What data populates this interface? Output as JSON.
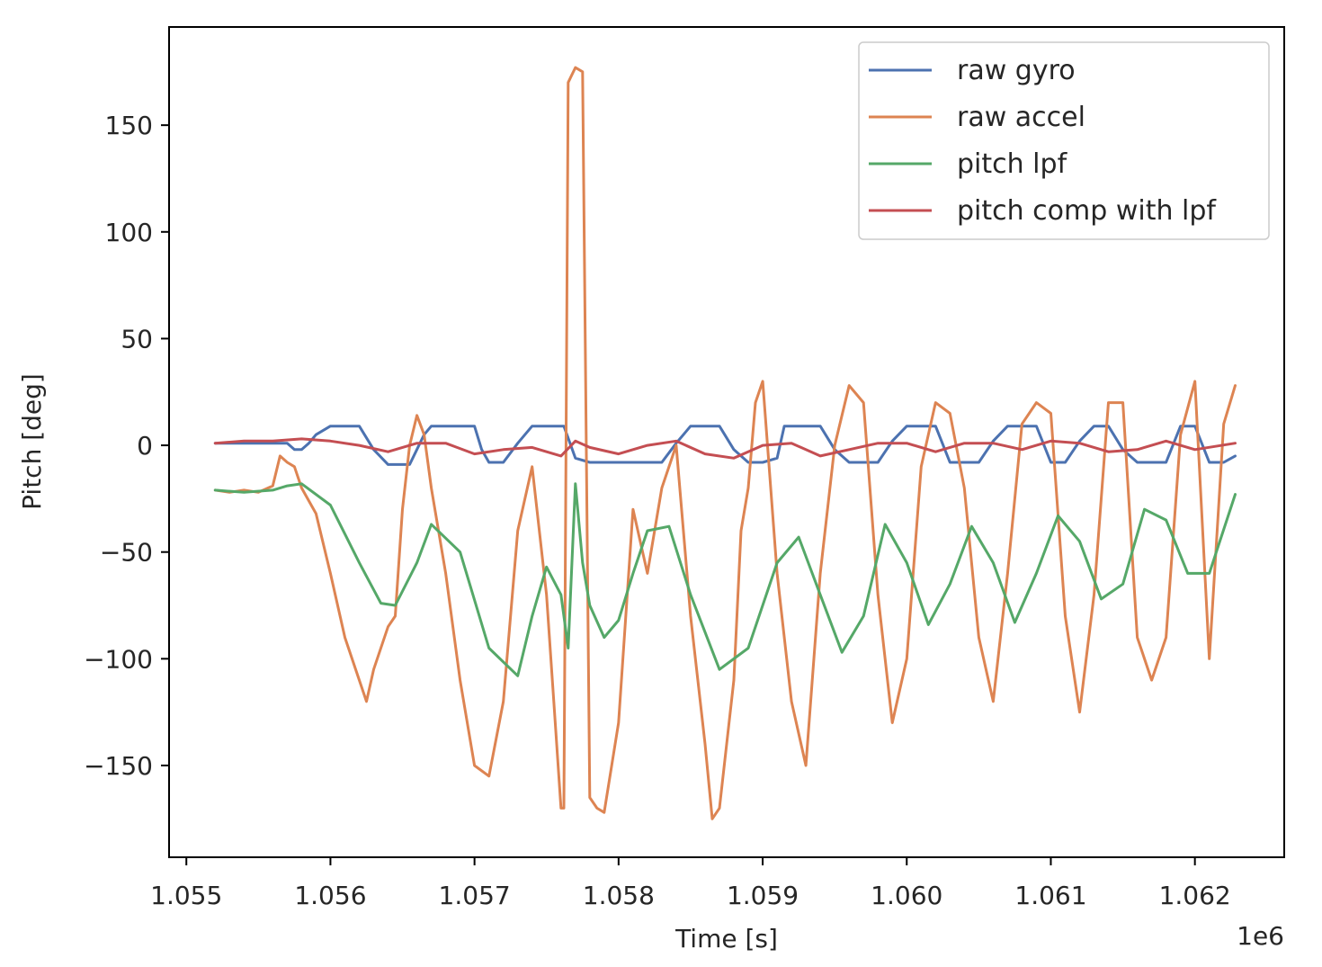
{
  "chart_data": {
    "type": "line",
    "xlabel": "Time [s]",
    "ylabel": "Pitch [deg]",
    "x_offset_label": "1e6",
    "xlim": [
      1.05488,
      1.06262
    ],
    "ylim": [
      -193,
      196
    ],
    "x_ticks": [
      1.055,
      1.056,
      1.057,
      1.058,
      1.059,
      1.06,
      1.061,
      1.062
    ],
    "x_tick_labels": [
      "1.055",
      "1.056",
      "1.057",
      "1.058",
      "1.059",
      "1.060",
      "1.061",
      "1.062"
    ],
    "y_ticks": [
      150,
      100,
      50,
      0,
      -50,
      -100,
      -150
    ],
    "y_tick_labels": [
      "150",
      "100",
      "50",
      "0",
      "−50",
      "−100",
      "−150"
    ],
    "grid": false,
    "legend_position": "top-right",
    "series": [
      {
        "name": "raw gyro",
        "color": "#4c72b0",
        "x": [
          1.0552,
          1.0557,
          1.05575,
          1.0558,
          1.05585,
          1.0559,
          1.056,
          1.0561,
          1.0562,
          1.0563,
          1.0564,
          1.05645,
          1.05655,
          1.05665,
          1.0567,
          1.0568,
          1.0569,
          1.057,
          1.05705,
          1.0571,
          1.0572,
          1.0573,
          1.0574,
          1.0575,
          1.0576,
          1.05762,
          1.0577,
          1.0578,
          1.0579,
          1.058,
          1.0581,
          1.0582,
          1.0583,
          1.0584,
          1.0585,
          1.05855,
          1.0587,
          1.0588,
          1.0589,
          1.059,
          1.0591,
          1.05915,
          1.0593,
          1.0594,
          1.0595,
          1.0596,
          1.0597,
          1.0598,
          1.0599,
          1.06,
          1.0601,
          1.0602,
          1.0603,
          1.0604,
          1.0605,
          1.0606,
          1.0607,
          1.0608,
          1.0609,
          1.061,
          1.0611,
          1.0612,
          1.0613,
          1.0614,
          1.0615,
          1.0616,
          1.0617,
          1.0618,
          1.0619,
          1.062,
          1.0621,
          1.0622,
          1.06228
        ],
        "y": [
          1,
          1,
          -2,
          -2,
          1,
          5,
          9,
          9,
          9,
          -2,
          -9,
          -9,
          -9,
          5,
          9,
          9,
          9,
          9,
          -2,
          -8,
          -8,
          1,
          9,
          9,
          9,
          9,
          -6,
          -8,
          -8,
          -8,
          -8,
          -8,
          -8,
          1,
          9,
          9,
          9,
          -2,
          -8,
          -8,
          -6,
          9,
          9,
          9,
          -2,
          -8,
          -8,
          -8,
          2,
          9,
          9,
          9,
          -8,
          -8,
          -8,
          2,
          9,
          9,
          9,
          -8,
          -8,
          2,
          9,
          9,
          -2,
          -8,
          -8,
          -8,
          9,
          9,
          -8,
          -8,
          -5
        ]
      },
      {
        "name": "raw accel",
        "color": "#dd8452",
        "x": [
          1.0552,
          1.0553,
          1.0554,
          1.0555,
          1.0556,
          1.05565,
          1.0557,
          1.05575,
          1.0558,
          1.0559,
          1.056,
          1.0561,
          1.0562,
          1.05625,
          1.0563,
          1.0564,
          1.05645,
          1.0565,
          1.05655,
          1.0566,
          1.05665,
          1.0567,
          1.0568,
          1.0569,
          1.057,
          1.0571,
          1.0572,
          1.0573,
          1.0574,
          1.0575,
          1.05755,
          1.0576,
          1.05762,
          1.05765,
          1.0577,
          1.05775,
          1.0578,
          1.05785,
          1.0579,
          1.058,
          1.0581,
          1.0582,
          1.0583,
          1.0584,
          1.0585,
          1.0586,
          1.05865,
          1.0587,
          1.0588,
          1.05885,
          1.0589,
          1.05895,
          1.059,
          1.0591,
          1.0592,
          1.0593,
          1.0594,
          1.0595,
          1.0596,
          1.0597,
          1.0598,
          1.0599,
          1.06,
          1.0601,
          1.0602,
          1.0603,
          1.0604,
          1.0605,
          1.0606,
          1.0607,
          1.0608,
          1.0609,
          1.061,
          1.0611,
          1.0612,
          1.0613,
          1.0614,
          1.0615,
          1.0616,
          1.0617,
          1.0618,
          1.0619,
          1.062,
          1.0621,
          1.0622,
          1.06228
        ],
        "y": [
          -21,
          -22,
          -21,
          -22,
          -19,
          -5,
          -8,
          -10,
          -20,
          -32,
          -60,
          -90,
          -110,
          -120,
          -105,
          -85,
          -80,
          -30,
          0,
          14,
          5,
          -20,
          -60,
          -110,
          -150,
          -155,
          -120,
          -40,
          -10,
          -70,
          -120,
          -170,
          -170,
          170,
          177,
          175,
          -165,
          -170,
          -172,
          -130,
          -30,
          -60,
          -20,
          0,
          -80,
          -140,
          -175,
          -170,
          -110,
          -40,
          -20,
          20,
          30,
          -60,
          -120,
          -150,
          -60,
          0,
          28,
          20,
          -70,
          -130,
          -100,
          -10,
          20,
          15,
          -20,
          -90,
          -120,
          -60,
          10,
          20,
          15,
          -80,
          -125,
          -70,
          20,
          20,
          -90,
          -110,
          -90,
          5,
          30,
          -100,
          10,
          28
        ]
      },
      {
        "name": "pitch lpf",
        "color": "#55a868",
        "x": [
          1.0552,
          1.0554,
          1.0556,
          1.0557,
          1.0558,
          1.056,
          1.0562,
          1.05635,
          1.05645,
          1.0566,
          1.0567,
          1.0569,
          1.0571,
          1.0573,
          1.0574,
          1.0575,
          1.0576,
          1.05765,
          1.0577,
          1.05775,
          1.0578,
          1.0579,
          1.058,
          1.0581,
          1.0582,
          1.05835,
          1.0585,
          1.0587,
          1.0589,
          1.0591,
          1.05925,
          1.0594,
          1.05955,
          1.0597,
          1.05985,
          1.06,
          1.06015,
          1.0603,
          1.06045,
          1.0606,
          1.06075,
          1.0609,
          1.06105,
          1.0612,
          1.06135,
          1.0615,
          1.06165,
          1.0618,
          1.06195,
          1.0621,
          1.06228
        ],
        "y": [
          -21,
          -22,
          -21,
          -19,
          -18,
          -28,
          -55,
          -74,
          -75,
          -55,
          -37,
          -50,
          -95,
          -108,
          -80,
          -57,
          -70,
          -95,
          -18,
          -55,
          -75,
          -90,
          -82,
          -60,
          -40,
          -38,
          -70,
          -105,
          -95,
          -55,
          -43,
          -70,
          -97,
          -80,
          -37,
          -55,
          -84,
          -65,
          -38,
          -55,
          -83,
          -60,
          -33,
          -45,
          -72,
          -65,
          -30,
          -35,
          -60,
          -60,
          -23
        ]
      },
      {
        "name": "pitch comp with lpf",
        "color": "#c44e52",
        "x": [
          1.0552,
          1.0554,
          1.0556,
          1.0558,
          1.056,
          1.0562,
          1.0564,
          1.0566,
          1.0568,
          1.057,
          1.0572,
          1.0574,
          1.0576,
          1.0577,
          1.0578,
          1.058,
          1.0582,
          1.0584,
          1.0586,
          1.0588,
          1.059,
          1.0592,
          1.0594,
          1.0596,
          1.0598,
          1.06,
          1.0602,
          1.0604,
          1.0606,
          1.0608,
          1.061,
          1.0612,
          1.0614,
          1.0616,
          1.0618,
          1.062,
          1.06228
        ],
        "y": [
          1,
          2,
          2,
          3,
          2,
          0,
          -3,
          1,
          1,
          -4,
          -2,
          -1,
          -5,
          2,
          -1,
          -4,
          0,
          2,
          -4,
          -6,
          0,
          1,
          -5,
          -2,
          1,
          1,
          -3,
          1,
          1,
          -2,
          2,
          1,
          -3,
          -2,
          2,
          -2,
          1
        ]
      }
    ]
  }
}
